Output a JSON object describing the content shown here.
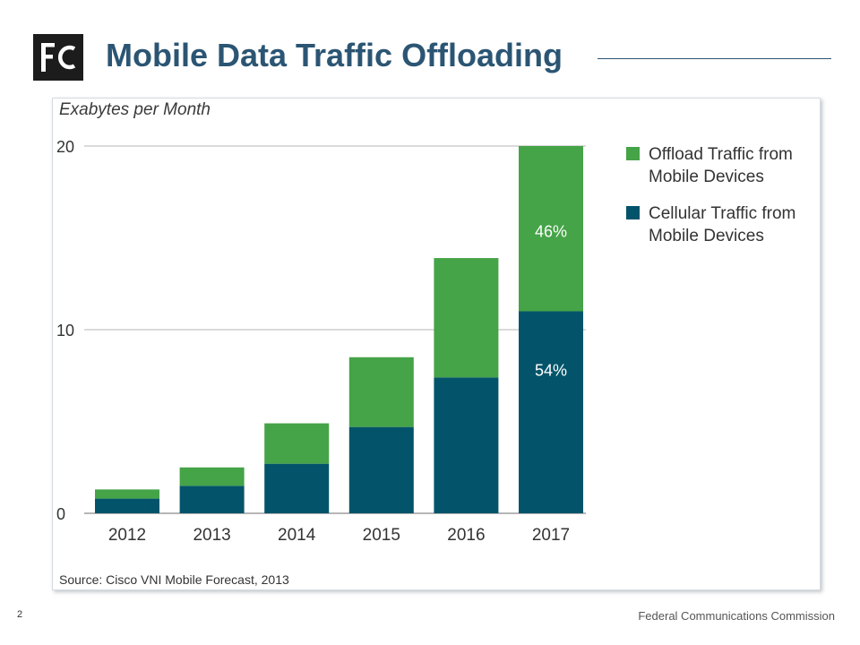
{
  "header": {
    "title": "Mobile Data Traffic Offloading",
    "logo": {
      "icon": "fcc-logo",
      "text": "FC",
      "background": "#1c1c1c",
      "foreground": "#ffffff"
    }
  },
  "chart_data": {
    "type": "bar",
    "stacked": true,
    "categories": [
      "2012",
      "2013",
      "2014",
      "2015",
      "2016",
      "2017"
    ],
    "series": [
      {
        "name": "Cellular Traffic from Mobile Devices",
        "values": [
          0.8,
          1.5,
          2.7,
          4.7,
          7.4,
          11.0
        ],
        "color": "#03546a"
      },
      {
        "name": "Offload Traffic from Mobile Devices",
        "values": [
          0.5,
          1.0,
          2.2,
          3.8,
          6.5,
          9.0
        ],
        "color": "#45a348"
      }
    ],
    "ylabel": "Exabytes per Month",
    "xlabel": "",
    "ylim": [
      0,
      20
    ],
    "yticks": [
      0,
      10,
      20
    ],
    "grid": true,
    "legend_position": "right",
    "annotations": [
      {
        "category": "2017",
        "series": "Offload Traffic from Mobile Devices",
        "text": "46%"
      },
      {
        "category": "2017",
        "series": "Cellular Traffic from Mobile Devices",
        "text": "54%"
      }
    ],
    "source": "Source: Cisco VNI Mobile Forecast, 2013"
  },
  "footer": {
    "page_number": "2",
    "organization": "Federal Communications Commission"
  }
}
